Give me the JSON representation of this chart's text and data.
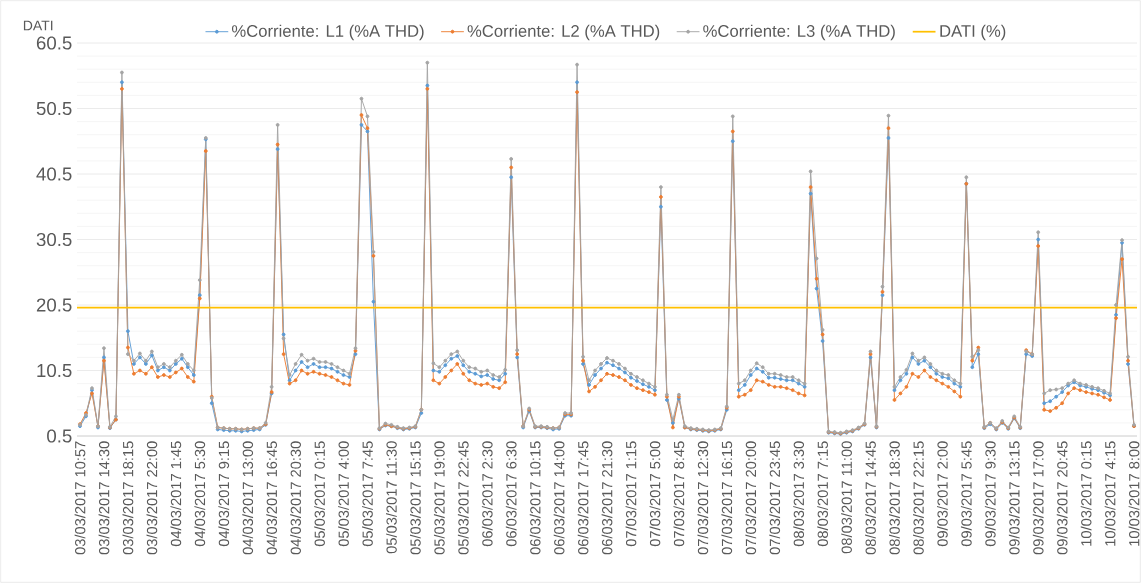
{
  "chart_data": {
    "type": "line",
    "ylabel": "DATI",
    "categories": [
      "03/03/2017 10:57",
      null,
      null,
      null,
      "03/03/2017 14:30",
      null,
      null,
      null,
      "03/03/2017 18:15",
      null,
      null,
      null,
      "03/03/2017 22:00",
      null,
      null,
      null,
      "04/03/2017 1:45",
      null,
      null,
      null,
      "04/03/2017 5:30",
      null,
      null,
      null,
      "04/03/2017 9:15",
      null,
      null,
      null,
      "04/03/2017 13:00",
      null,
      null,
      null,
      "04/03/2017 16:45",
      null,
      null,
      null,
      "04/03/2017 20:30",
      null,
      null,
      null,
      "05/03/2017 0:15",
      null,
      null,
      null,
      "05/03/2017 4:00",
      null,
      null,
      null,
      "05/03/2017 7:45",
      null,
      null,
      null,
      "05/03/2017 11:30",
      null,
      null,
      null,
      "05/03/2017 15:15",
      null,
      null,
      null,
      "05/03/2017 19:00",
      null,
      null,
      null,
      "05/03/2017 22:45",
      null,
      null,
      null,
      "06/03/2017 2:30",
      null,
      null,
      null,
      "06/03/2017 6:30",
      null,
      null,
      null,
      "06/03/2017 10:15",
      null,
      null,
      null,
      "06/03/2017 14:00",
      null,
      null,
      null,
      "06/03/2017 17:45",
      null,
      null,
      null,
      "06/03/2017 21:30",
      null,
      null,
      null,
      "07/03/2017 1:15",
      null,
      null,
      null,
      "07/03/2017 5:00",
      null,
      null,
      null,
      "07/03/2017 8:45",
      null,
      null,
      null,
      "07/03/2017 12:30",
      null,
      null,
      null,
      "07/03/2017 16:15",
      null,
      null,
      null,
      "07/03/2017 20:00",
      null,
      null,
      null,
      "07/03/2017 23:45",
      null,
      null,
      null,
      "08/03/2017 3:30",
      null,
      null,
      null,
      "08/03/2017 7:15",
      null,
      null,
      null,
      "08/03/2017 11:00",
      null,
      null,
      null,
      "08/03/2017 14:45",
      null,
      null,
      null,
      "08/03/2017 18:30",
      null,
      null,
      null,
      "08/03/2017 22:15",
      null,
      null,
      null,
      "09/03/2017 2:00",
      null,
      null,
      null,
      "09/03/2017 5:45",
      null,
      null,
      null,
      "09/03/2017 9:30",
      null,
      null,
      null,
      "09/03/2017 13:15",
      null,
      null,
      null,
      "09/03/2017 17:00",
      null,
      null,
      null,
      "09/03/2017 20:45",
      null,
      null,
      null,
      "10/03/2017 0:15",
      null,
      null,
      null,
      "10/03/2017 4:15",
      null,
      null,
      null,
      "10/03/2017 8:00"
    ],
    "series": [
      {
        "name": "%Corriente: L1 (%A THD)",
        "color": "#5b9bd5",
        "values": [
          2.0,
          3.5,
          7.5,
          1.8,
          12.5,
          1.7,
          3.0,
          54.5,
          16.5,
          11.5,
          12.5,
          11.5,
          12.8,
          10.5,
          11.0,
          10.5,
          11.5,
          12.3,
          11.0,
          9.8,
          22.0,
          45.8,
          5.5,
          1.5,
          1.4,
          1.3,
          1.3,
          1.2,
          1.3,
          1.4,
          1.5,
          2.2,
          7.0,
          44.3,
          16.0,
          9.0,
          10.5,
          11.8,
          11.0,
          11.5,
          11.0,
          11.0,
          10.8,
          10.3,
          9.8,
          9.5,
          13.0,
          48.0,
          47.0,
          21.0,
          1.5,
          2.1,
          2.0,
          1.7,
          1.5,
          1.6,
          1.8,
          4.0,
          54.0,
          10.5,
          10.3,
          11.3,
          12.3,
          12.7,
          11.3,
          10.3,
          10.0,
          9.6,
          9.8,
          9.2,
          9.0,
          10.0,
          40.0,
          12.5,
          1.8,
          4.3,
          1.8,
          1.8,
          1.7,
          1.5,
          1.6,
          3.6,
          3.6,
          54.5,
          11.5,
          8.3,
          9.8,
          10.8,
          11.7,
          11.3,
          10.8,
          10.2,
          9.4,
          8.9,
          8.4,
          8.0,
          7.5,
          35.5,
          6.0,
          2.5,
          6.2,
          1.8,
          1.5,
          1.4,
          1.3,
          1.2,
          1.3,
          1.5,
          4.5,
          45.5,
          7.5,
          8.3,
          9.8,
          10.8,
          10.3,
          9.4,
          9.4,
          9.2,
          9.0,
          9.0,
          8.5,
          8.0,
          37.5,
          23.0,
          15.0,
          1.0,
          0.9,
          0.8,
          1.0,
          1.2,
          1.6,
          2.2,
          12.5,
          1.8,
          22.0,
          46.0,
          7.5,
          9.0,
          10.0,
          12.5,
          11.5,
          12.0,
          11.0,
          10.0,
          9.5,
          9.3,
          8.5,
          8.0,
          39.0,
          11.0,
          13.0,
          1.7,
          2.3,
          1.5,
          2.5,
          1.6,
          3.2,
          1.7,
          13.0,
          12.7,
          30.5,
          5.5,
          5.8,
          6.5,
          7.2,
          8.2,
          8.7,
          8.2,
          8.0,
          7.7,
          7.5,
          7.1,
          6.7,
          19.0,
          30.0,
          11.5,
          2.0
        ]
      },
      {
        "name": "%Corriente: L2 (%A THD)",
        "color": "#ed7d31",
        "values": [
          2.3,
          4.0,
          7.0,
          2.0,
          12.0,
          1.8,
          3.0,
          53.5,
          14.0,
          10.0,
          10.5,
          10.0,
          11.0,
          9.5,
          9.8,
          9.5,
          10.2,
          10.8,
          9.5,
          8.8,
          21.5,
          44.0,
          6.5,
          1.8,
          1.7,
          1.6,
          1.6,
          1.5,
          1.6,
          1.7,
          1.7,
          2.3,
          7.2,
          45.0,
          13.0,
          8.5,
          9.0,
          10.5,
          10.0,
          10.3,
          10.0,
          9.8,
          9.5,
          9.0,
          8.5,
          8.3,
          13.5,
          49.5,
          47.5,
          28.0,
          1.6,
          2.2,
          2.0,
          1.8,
          1.6,
          1.7,
          1.9,
          4.5,
          53.5,
          9.0,
          8.5,
          9.5,
          10.5,
          11.5,
          10.0,
          9.0,
          8.5,
          8.3,
          8.5,
          8.0,
          7.8,
          8.7,
          41.5,
          13.0,
          2.0,
          4.5,
          1.9,
          1.9,
          1.8,
          1.7,
          1.8,
          3.8,
          3.8,
          53.0,
          12.0,
          7.3,
          8.0,
          9.0,
          10.0,
          9.8,
          9.5,
          9.0,
          8.3,
          7.8,
          7.5,
          7.2,
          6.8,
          37.0,
          6.5,
          1.8,
          6.5,
          1.8,
          1.6,
          1.5,
          1.4,
          1.3,
          1.4,
          1.6,
          4.8,
          47.0,
          6.5,
          6.8,
          7.5,
          9.0,
          8.8,
          8.3,
          8.0,
          8.0,
          7.8,
          7.5,
          7.0,
          6.7,
          38.5,
          24.5,
          16.0,
          1.1,
          1.0,
          0.9,
          1.1,
          1.3,
          1.7,
          2.3,
          13.0,
          1.9,
          22.5,
          47.5,
          6.0,
          7.0,
          8.0,
          10.0,
          9.5,
          10.5,
          9.5,
          9.0,
          8.5,
          8.0,
          7.3,
          6.5,
          39.0,
          12.0,
          14.0,
          1.8,
          2.5,
          1.6,
          2.6,
          1.7,
          3.3,
          1.8,
          13.6,
          13.0,
          29.5,
          4.5,
          4.3,
          4.8,
          5.5,
          7.0,
          7.8,
          7.5,
          7.2,
          7.0,
          6.8,
          6.4,
          6.0,
          18.5,
          27.5,
          12.0,
          2.0
        ]
      },
      {
        "name": "%Corriente: L3 (%A THD)",
        "color": "#a5a5a5",
        "values": [
          2.2,
          3.7,
          7.8,
          2.0,
          13.9,
          1.9,
          3.5,
          56.0,
          13.0,
          12.0,
          13.1,
          12.0,
          13.4,
          11.0,
          11.5,
          11.0,
          12.0,
          12.9,
          11.5,
          10.5,
          24.3,
          46.0,
          6.3,
          1.8,
          1.7,
          1.6,
          1.6,
          1.5,
          1.6,
          1.7,
          1.7,
          2.5,
          8.0,
          48.0,
          15.4,
          9.8,
          11.5,
          12.9,
          12.0,
          12.3,
          11.8,
          11.8,
          11.5,
          11.0,
          10.5,
          10.0,
          13.9,
          52.0,
          49.3,
          28.6,
          1.7,
          2.4,
          2.2,
          1.9,
          1.7,
          1.8,
          2.0,
          4.5,
          57.5,
          11.6,
          11.0,
          12.0,
          13.0,
          13.4,
          12.0,
          11.0,
          10.8,
          10.3,
          10.5,
          9.8,
          9.5,
          10.6,
          42.8,
          13.6,
          2.0,
          4.7,
          2.0,
          2.0,
          1.9,
          1.7,
          1.8,
          4.0,
          4.0,
          57.2,
          12.6,
          9.0,
          10.5,
          11.5,
          12.4,
          12.0,
          11.5,
          10.8,
          10.0,
          9.5,
          9.0,
          8.5,
          8.0,
          38.5,
          6.8,
          3.0,
          6.8,
          2.0,
          1.7,
          1.6,
          1.5,
          1.4,
          1.5,
          1.7,
          5.0,
          49.3,
          8.5,
          9.0,
          10.5,
          11.6,
          11.0,
          10.0,
          10.0,
          9.8,
          9.5,
          9.5,
          9.0,
          8.5,
          40.9,
          27.6,
          16.7,
          1.2,
          1.1,
          1.0,
          1.2,
          1.4,
          1.8,
          2.4,
          13.4,
          2.0,
          23.3,
          49.4,
          8.0,
          9.5,
          10.6,
          13.1,
          12.0,
          12.5,
          11.5,
          10.5,
          10.0,
          9.8,
          9.0,
          8.5,
          40.0,
          12.6,
          13.6,
          1.9,
          2.5,
          1.7,
          2.8,
          1.8,
          3.5,
          1.9,
          13.4,
          13.0,
          31.6,
          7.0,
          7.5,
          7.6,
          7.8,
          8.5,
          9.0,
          8.5,
          8.3,
          8.0,
          7.8,
          7.4,
          7.0,
          20.5,
          30.4,
          12.6,
          2.2
        ]
      }
    ],
    "ylim": [
      0.5,
      60.5
    ],
    "yticks": [
      0.5,
      10.5,
      20.5,
      30.5,
      40.5,
      50.5,
      60.5
    ],
    "ref_lines": [
      {
        "axis": "y",
        "value": 20.1,
        "label": "DATI (%)",
        "color": "#ffc000"
      }
    ],
    "grid": "y",
    "legend": "top",
    "marker": "circle",
    "line_style": "solid"
  }
}
